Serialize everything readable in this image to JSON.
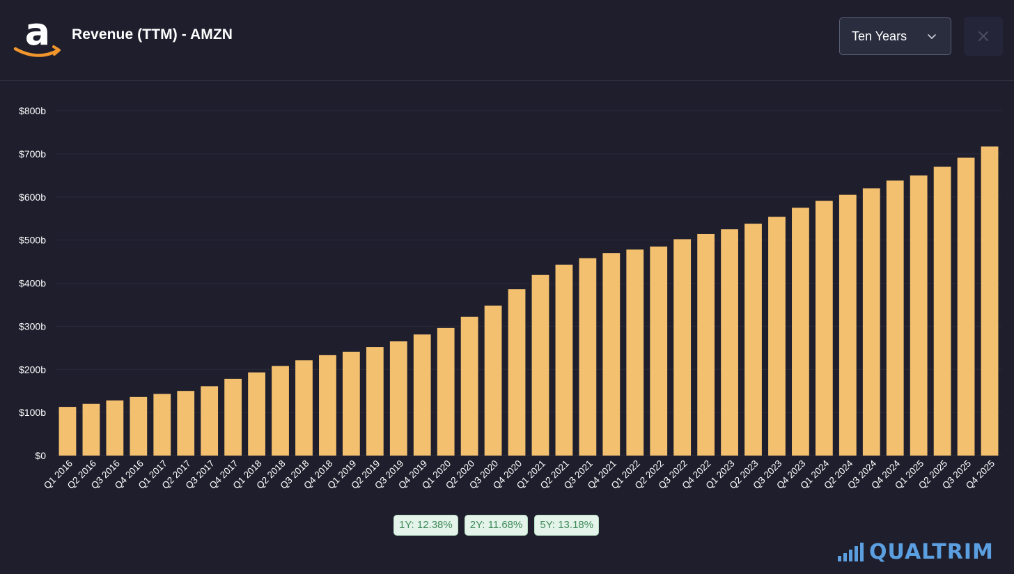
{
  "header": {
    "title": "Revenue (TTM) - AMZN",
    "range_label": "Ten Years",
    "logo_icon": "amazon-logo-icon",
    "close_icon": "close-icon",
    "chevron_icon": "chevron-down-icon"
  },
  "colors": {
    "bar": "#f3c06f",
    "background": "#1e1e2d",
    "grid": "#2a2a3c",
    "brand": "#5b9fe0",
    "logo_arrow": "#f0962d"
  },
  "chart_data": {
    "type": "bar",
    "title": "Revenue (TTM) - AMZN",
    "xlabel": "",
    "ylabel": "",
    "ylim": [
      0,
      800
    ],
    "yticks": [
      0,
      100,
      200,
      300,
      400,
      500,
      600,
      700,
      800
    ],
    "ytick_labels": [
      "$0",
      "$100b",
      "$200b",
      "$300b",
      "$400b",
      "$500b",
      "$600b",
      "$700b",
      "$800b"
    ],
    "grid": true,
    "categories": [
      "Q1 2016",
      "Q2 2016",
      "Q3 2016",
      "Q4 2016",
      "Q1 2017",
      "Q2 2017",
      "Q3 2017",
      "Q4 2017",
      "Q1 2018",
      "Q2 2018",
      "Q3 2018",
      "Q4 2018",
      "Q1 2019",
      "Q2 2019",
      "Q3 2019",
      "Q4 2019",
      "Q1 2020",
      "Q2 2020",
      "Q3 2020",
      "Q4 2020",
      "Q1 2021",
      "Q2 2021",
      "Q3 2021",
      "Q4 2021",
      "Q1 2022",
      "Q2 2022",
      "Q3 2022",
      "Q4 2022",
      "Q1 2023",
      "Q2 2023",
      "Q3 2023",
      "Q4 2023",
      "Q1 2024",
      "Q2 2024",
      "Q3 2024",
      "Q4 2024",
      "Q1 2025",
      "Q2 2025",
      "Q3 2025",
      "Q4 2025"
    ],
    "values": [
      113,
      120,
      128,
      136,
      143,
      150,
      161,
      178,
      193,
      208,
      221,
      233,
      241,
      252,
      265,
      281,
      296,
      322,
      348,
      386,
      419,
      443,
      458,
      470,
      478,
      485,
      502,
      514,
      525,
      538,
      554,
      575,
      591,
      605,
      620,
      638,
      650,
      670,
      691,
      717
    ]
  },
  "growth_badges": [
    {
      "label": "1Y: 12.38%"
    },
    {
      "label": "2Y: 11.68%"
    },
    {
      "label": "5Y: 13.18%"
    }
  ],
  "brand": {
    "name": "QUALTRIM",
    "icon": "signal-bars-icon"
  }
}
